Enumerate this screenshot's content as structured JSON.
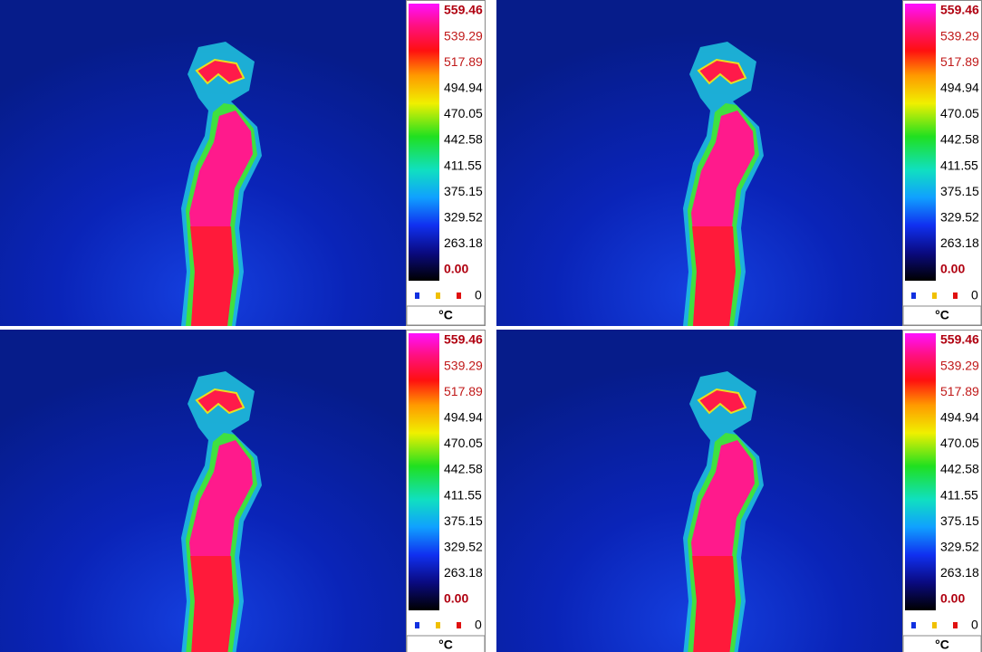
{
  "panels": [
    {
      "scale": [
        "559.46",
        "539.29",
        "517.89",
        "494.94",
        "470.05",
        "442.58",
        "411.55",
        "375.15",
        "329.52",
        "263.18",
        "0.00"
      ],
      "marker": "0",
      "unit": "°C"
    },
    {
      "scale": [
        "559.46",
        "539.29",
        "517.89",
        "494.94",
        "470.05",
        "442.58",
        "411.55",
        "375.15",
        "329.52",
        "263.18",
        "0.00"
      ],
      "marker": "0",
      "unit": "°C"
    },
    {
      "scale": [
        "559.46",
        "539.29",
        "517.89",
        "494.94",
        "470.05",
        "442.58",
        "411.55",
        "375.15",
        "329.52",
        "263.18",
        "0.00"
      ],
      "marker": "0",
      "unit": "°C"
    },
    {
      "scale": [
        "559.46",
        "539.29",
        "517.89",
        "494.94",
        "470.05",
        "442.58",
        "411.55",
        "375.15",
        "329.52",
        "263.18",
        "0.00"
      ],
      "marker": "0",
      "unit": "°C"
    }
  ]
}
